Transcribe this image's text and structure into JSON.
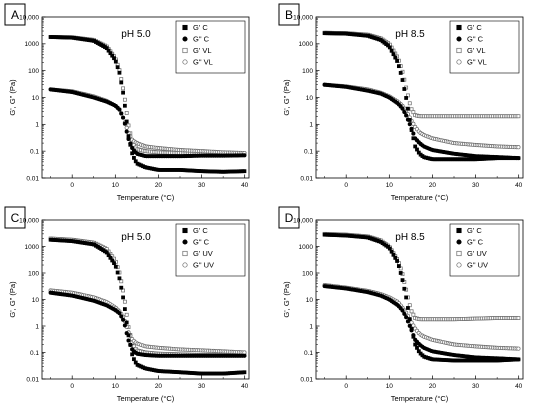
{
  "chart_data": [
    {
      "panel_label": "A",
      "type": "scatter",
      "title": "pH 5.0",
      "xlabel": "Temperature (°C)",
      "ylabel": "G', G\" (Pa)",
      "x_ticks": [
        "0",
        "10",
        "20",
        "30",
        "40"
      ],
      "y_ticks": [
        "0.01",
        "0.1",
        "1",
        "10",
        "100",
        "1000",
        "10,000"
      ],
      "xlim": [
        -7,
        41
      ],
      "ylim": [
        0.01,
        10000
      ],
      "yscale": "log",
      "legend_position": "top-right",
      "series": [
        {
          "name": "G' C",
          "marker": "square-filled",
          "x": [
            -5,
            0,
            5,
            8,
            10,
            11,
            12,
            13,
            14,
            15,
            17,
            20,
            25,
            30,
            35,
            40
          ],
          "y": [
            1800,
            1700,
            1300,
            700,
            250,
            80,
            10,
            0.4,
            0.07,
            0.035,
            0.025,
            0.02,
            0.02,
            0.018,
            0.017,
            0.018
          ]
        },
        {
          "name": "G\" C",
          "marker": "circle-filled",
          "x": [
            -5,
            0,
            5,
            8,
            10,
            11,
            12,
            13,
            14,
            15,
            17,
            20,
            25,
            30,
            35,
            40
          ],
          "y": [
            20,
            16,
            10,
            7,
            5,
            3.5,
            1.5,
            0.3,
            0.12,
            0.08,
            0.065,
            0.065,
            0.065,
            0.068,
            0.068,
            0.07
          ]
        },
        {
          "name": "G' VL",
          "marker": "square-open",
          "x": [
            -5,
            0,
            5,
            8,
            10,
            11,
            12,
            13,
            14,
            15,
            17,
            20,
            25,
            30,
            35,
            40
          ],
          "y": [
            1800,
            1750,
            1400,
            800,
            300,
            100,
            15,
            1,
            0.2,
            0.12,
            0.1,
            0.09,
            0.085,
            0.08,
            0.08,
            0.08
          ]
        },
        {
          "name": "G\" VL",
          "marker": "circle-open",
          "x": [
            -5,
            0,
            5,
            8,
            10,
            11,
            12,
            13,
            14,
            15,
            17,
            20,
            25,
            30,
            35,
            40
          ],
          "y": [
            20,
            17,
            11,
            7.5,
            5,
            3.5,
            1.5,
            0.5,
            0.25,
            0.2,
            0.15,
            0.13,
            0.11,
            0.1,
            0.09,
            0.085
          ]
        }
      ]
    },
    {
      "panel_label": "B",
      "type": "scatter",
      "title": "pH 8.5",
      "xlabel": "Temperature (°C)",
      "ylabel": "G', G\" (Pa)",
      "x_ticks": [
        "0",
        "10",
        "20",
        "30",
        "40"
      ],
      "y_ticks": [
        "0.01",
        "0.1",
        "1",
        "10",
        "100",
        "1000",
        "10,000"
      ],
      "xlim": [
        -7,
        41
      ],
      "ylim": [
        0.01,
        10000
      ],
      "yscale": "log",
      "legend_position": "top-right",
      "series": [
        {
          "name": "G' C",
          "marker": "square-filled",
          "x": [
            -5,
            0,
            5,
            8,
            10,
            12,
            13,
            14,
            15,
            16,
            17,
            18,
            20,
            25,
            30,
            35,
            40
          ],
          "y": [
            2500,
            2400,
            2000,
            1400,
            800,
            200,
            50,
            8,
            0.8,
            0.15,
            0.08,
            0.06,
            0.05,
            0.05,
            0.05,
            0.055,
            0.055
          ]
        },
        {
          "name": "G\" C",
          "marker": "circle-filled",
          "x": [
            -5,
            0,
            5,
            8,
            10,
            12,
            13,
            14,
            15,
            16,
            17,
            18,
            20,
            25,
            30,
            35,
            40
          ],
          "y": [
            30,
            25,
            18,
            14,
            10,
            6,
            4,
            2,
            0.8,
            0.3,
            0.2,
            0.15,
            0.11,
            0.08,
            0.065,
            0.06,
            0.055
          ]
        },
        {
          "name": "G' VL",
          "marker": "square-open",
          "x": [
            -5,
            0,
            5,
            8,
            10,
            12,
            13,
            14,
            15,
            16,
            17,
            18,
            20,
            25,
            30,
            35,
            40
          ],
          "y": [
            2600,
            2500,
            2200,
            1600,
            1000,
            300,
            100,
            20,
            4,
            2.2,
            2,
            2,
            2,
            2,
            2,
            2,
            2
          ]
        },
        {
          "name": "G\" VL",
          "marker": "circle-open",
          "x": [
            -5,
            0,
            5,
            8,
            10,
            12,
            13,
            14,
            15,
            16,
            17,
            18,
            20,
            25,
            30,
            35,
            40
          ],
          "y": [
            30,
            26,
            20,
            15,
            11,
            7,
            5,
            3,
            1.5,
            0.8,
            0.5,
            0.4,
            0.3,
            0.2,
            0.17,
            0.15,
            0.14
          ]
        }
      ]
    },
    {
      "panel_label": "C",
      "type": "scatter",
      "title": "pH 5.0",
      "xlabel": "Temperature (°C)",
      "ylabel": "G', G\" (Pa)",
      "x_ticks": [
        "0",
        "10",
        "20",
        "30",
        "40"
      ],
      "y_ticks": [
        "0.01",
        "0.1",
        "1",
        "10",
        "100",
        "1000",
        "10,000"
      ],
      "xlim": [
        -7,
        41
      ],
      "ylim": [
        0.01,
        10000
      ],
      "yscale": "log",
      "legend_position": "top-right",
      "series": [
        {
          "name": "G' C",
          "marker": "square-filled",
          "x": [
            -5,
            0,
            5,
            8,
            10,
            11,
            12,
            13,
            14,
            15,
            17,
            20,
            25,
            30,
            35,
            40
          ],
          "y": [
            1800,
            1600,
            1200,
            600,
            200,
            60,
            8,
            0.5,
            0.07,
            0.035,
            0.025,
            0.02,
            0.018,
            0.016,
            0.016,
            0.018
          ]
        },
        {
          "name": "G\" C",
          "marker": "circle-filled",
          "x": [
            -5,
            0,
            5,
            8,
            10,
            11,
            12,
            13,
            14,
            15,
            17,
            20,
            25,
            30,
            35,
            40
          ],
          "y": [
            18,
            14,
            9,
            6,
            4,
            3,
            1.5,
            0.3,
            0.12,
            0.09,
            0.08,
            0.075,
            0.075,
            0.075,
            0.075,
            0.075
          ]
        },
        {
          "name": "G' UV",
          "marker": "square-open",
          "x": [
            -5,
            0,
            5,
            8,
            10,
            11,
            12,
            13,
            14,
            15,
            17,
            20,
            25,
            30,
            35,
            40
          ],
          "y": [
            2000,
            1800,
            1400,
            800,
            300,
            100,
            15,
            1,
            0.2,
            0.12,
            0.1,
            0.09,
            0.085,
            0.08,
            0.08,
            0.08
          ]
        },
        {
          "name": "G\" UV",
          "marker": "circle-open",
          "x": [
            -5,
            0,
            5,
            8,
            10,
            11,
            12,
            13,
            14,
            15,
            17,
            20,
            25,
            30,
            35,
            40
          ],
          "y": [
            22,
            18,
            12,
            8,
            5,
            3.5,
            2,
            0.6,
            0.3,
            0.22,
            0.17,
            0.15,
            0.13,
            0.12,
            0.11,
            0.1
          ]
        }
      ]
    },
    {
      "panel_label": "D",
      "type": "scatter",
      "title": "pH 8.5",
      "xlabel": "Temperature (°C)",
      "ylabel": "G', G\" (Pa)",
      "x_ticks": [
        "0",
        "10",
        "20",
        "30",
        "40"
      ],
      "y_ticks": [
        "0.01",
        "0.1",
        "1",
        "10",
        "100",
        "1000",
        "10,000"
      ],
      "xlim": [
        -7,
        41
      ],
      "ylim": [
        0.01,
        10000
      ],
      "yscale": "log",
      "legend_position": "top-right",
      "series": [
        {
          "name": "G' C",
          "marker": "square-filled",
          "x": [
            -5,
            0,
            5,
            8,
            10,
            12,
            13,
            14,
            15,
            16,
            17,
            18,
            20,
            25,
            30,
            35,
            40
          ],
          "y": [
            2800,
            2600,
            2200,
            1500,
            900,
            250,
            60,
            10,
            1,
            0.2,
            0.1,
            0.07,
            0.055,
            0.05,
            0.05,
            0.05,
            0.055
          ]
        },
        {
          "name": "G\" C",
          "marker": "circle-filled",
          "x": [
            -5,
            0,
            5,
            8,
            10,
            12,
            13,
            14,
            15,
            16,
            17,
            18,
            20,
            25,
            30,
            35,
            40
          ],
          "y": [
            32,
            26,
            19,
            14,
            10,
            6,
            4,
            2,
            0.8,
            0.3,
            0.2,
            0.15,
            0.11,
            0.08,
            0.065,
            0.06,
            0.055
          ]
        },
        {
          "name": "G' UV",
          "marker": "square-open",
          "x": [
            -5,
            0,
            5,
            8,
            10,
            12,
            13,
            14,
            15,
            16,
            17,
            18,
            20,
            25,
            30,
            35,
            40
          ],
          "y": [
            3000,
            2800,
            2400,
            1700,
            1000,
            300,
            100,
            20,
            4,
            2,
            1.8,
            1.8,
            1.8,
            1.8,
            1.9,
            2,
            2
          ]
        },
        {
          "name": "G\" UV",
          "marker": "circle-open",
          "x": [
            -5,
            0,
            5,
            8,
            10,
            12,
            13,
            14,
            15,
            16,
            17,
            18,
            20,
            25,
            30,
            35,
            40
          ],
          "y": [
            35,
            28,
            21,
            16,
            12,
            8,
            5,
            3,
            1.5,
            0.8,
            0.5,
            0.4,
            0.3,
            0.2,
            0.17,
            0.15,
            0.14
          ]
        }
      ]
    }
  ]
}
